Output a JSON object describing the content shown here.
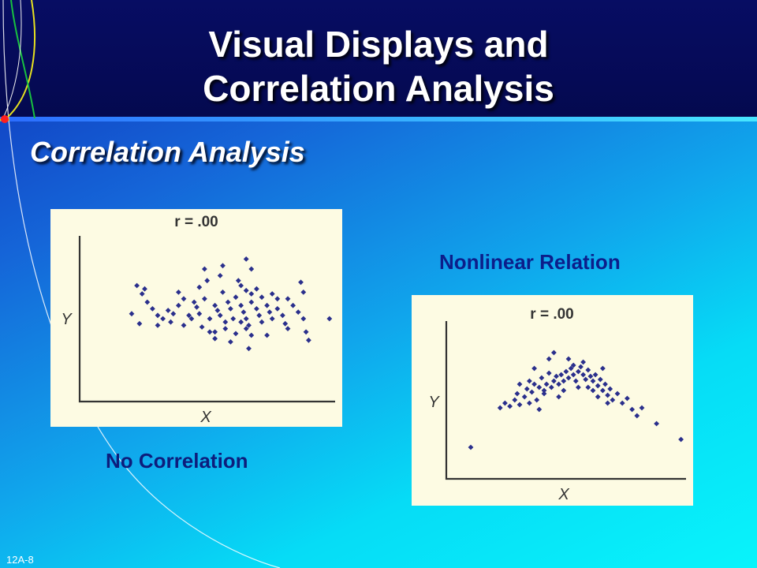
{
  "slide": {
    "title_line1": "Visual Displays and",
    "title_line2": "Correlation Analysis",
    "subtitle": "Correlation Analysis",
    "slide_number": "12A-8"
  },
  "colors": {
    "header": "#050a55",
    "panel": "#fdfbe3",
    "point": "#2a2f8c",
    "caption": "#0c1e8a"
  },
  "chart_data": [
    {
      "type": "scatter",
      "title": "r = .00",
      "xlabel": "X",
      "ylabel": "Y",
      "caption": "No Correlation",
      "xlim": [
        0,
        100
      ],
      "ylim": [
        0,
        100
      ],
      "grid": false,
      "points": [
        [
          24,
          65
        ],
        [
          25,
          68
        ],
        [
          22,
          70
        ],
        [
          26,
          60
        ],
        [
          20,
          53
        ],
        [
          23,
          47
        ],
        [
          28,
          56
        ],
        [
          30,
          52
        ],
        [
          32,
          50
        ],
        [
          30,
          46
        ],
        [
          34,
          55
        ],
        [
          36,
          53
        ],
        [
          35,
          48
        ],
        [
          38,
          58
        ],
        [
          40,
          46
        ],
        [
          42,
          52
        ],
        [
          43,
          50
        ],
        [
          45,
          57
        ],
        [
          44,
          60
        ],
        [
          46,
          53
        ],
        [
          47,
          45
        ],
        [
          48,
          62
        ],
        [
          50,
          50
        ],
        [
          52,
          58
        ],
        [
          53,
          55
        ],
        [
          54,
          52
        ],
        [
          55,
          66
        ],
        [
          57,
          60
        ],
        [
          58,
          56
        ],
        [
          59,
          50
        ],
        [
          60,
          63
        ],
        [
          62,
          58
        ],
        [
          63,
          54
        ],
        [
          64,
          50
        ],
        [
          65,
          46
        ],
        [
          66,
          60
        ],
        [
          68,
          56
        ],
        [
          69,
          52
        ],
        [
          70,
          48
        ],
        [
          72,
          58
        ],
        [
          73,
          54
        ],
        [
          74,
          50
        ],
        [
          76,
          56
        ],
        [
          78,
          52
        ],
        [
          79,
          47
        ],
        [
          80,
          44
        ],
        [
          62,
          70
        ],
        [
          64,
          67
        ],
        [
          66,
          65
        ],
        [
          68,
          68
        ],
        [
          70,
          63
        ],
        [
          61,
          73
        ],
        [
          74,
          65
        ],
        [
          76,
          62
        ],
        [
          80,
          62
        ],
        [
          82,
          58
        ],
        [
          85,
          72
        ],
        [
          86,
          66
        ],
        [
          84,
          54
        ],
        [
          86,
          50
        ],
        [
          87,
          42
        ],
        [
          88,
          37
        ],
        [
          96,
          50
        ],
        [
          65,
          32
        ],
        [
          58,
          36
        ],
        [
          52,
          42
        ],
        [
          56,
          44
        ],
        [
          60,
          41
        ],
        [
          64,
          44
        ],
        [
          66,
          40
        ],
        [
          72,
          40
        ],
        [
          49,
          73
        ],
        [
          48,
          80
        ],
        [
          55,
          82
        ],
        [
          64,
          86
        ],
        [
          66,
          80
        ],
        [
          54,
          76
        ],
        [
          46,
          69
        ],
        [
          40,
          62
        ],
        [
          38,
          66
        ],
        [
          50,
          42
        ],
        [
          52,
          38
        ],
        [
          56,
          48
        ],
        [
          62,
          48
        ]
      ]
    },
    {
      "type": "scatter",
      "title": "r = .00",
      "xlabel": "X",
      "ylabel": "Y",
      "caption": "Nonlinear Relation",
      "xlim": [
        0,
        100
      ],
      "ylim": [
        0,
        100
      ],
      "grid": false,
      "points": [
        [
          10,
          20
        ],
        [
          22,
          45
        ],
        [
          24,
          48
        ],
        [
          26,
          46
        ],
        [
          28,
          50
        ],
        [
          29,
          54
        ],
        [
          30,
          47
        ],
        [
          32,
          52
        ],
        [
          33,
          57
        ],
        [
          34,
          62
        ],
        [
          35,
          55
        ],
        [
          36,
          60
        ],
        [
          37,
          50
        ],
        [
          38,
          58
        ],
        [
          39,
          64
        ],
        [
          40,
          56
        ],
        [
          41,
          60
        ],
        [
          42,
          67
        ],
        [
          43,
          58
        ],
        [
          44,
          62
        ],
        [
          45,
          65
        ],
        [
          46,
          60
        ],
        [
          47,
          66
        ],
        [
          48,
          62
        ],
        [
          49,
          68
        ],
        [
          50,
          64
        ],
        [
          51,
          70
        ],
        [
          52,
          66
        ],
        [
          53,
          62
        ],
        [
          54,
          68
        ],
        [
          55,
          71
        ],
        [
          56,
          66
        ],
        [
          57,
          63
        ],
        [
          58,
          69
        ],
        [
          59,
          65
        ],
        [
          60,
          62
        ],
        [
          61,
          66
        ],
        [
          62,
          59
        ],
        [
          63,
          63
        ],
        [
          64,
          56
        ],
        [
          65,
          60
        ],
        [
          66,
          53
        ],
        [
          67,
          57
        ],
        [
          68,
          50
        ],
        [
          70,
          54
        ],
        [
          72,
          48
        ],
        [
          74,
          51
        ],
        [
          76,
          44
        ],
        [
          78,
          40
        ],
        [
          80,
          45
        ],
        [
          86,
          35
        ],
        [
          96,
          25
        ],
        [
          42,
          76
        ],
        [
          44,
          80
        ],
        [
          36,
          70
        ],
        [
          56,
          74
        ],
        [
          52,
          72
        ],
        [
          40,
          54
        ],
        [
          30,
          60
        ],
        [
          48,
          56
        ],
        [
          58,
          58
        ],
        [
          62,
          52
        ],
        [
          34,
          48
        ],
        [
          46,
          52
        ],
        [
          54,
          58
        ],
        [
          60,
          56
        ],
        [
          66,
          48
        ],
        [
          38,
          44
        ],
        [
          64,
          70
        ],
        [
          50,
          76
        ]
      ]
    }
  ]
}
